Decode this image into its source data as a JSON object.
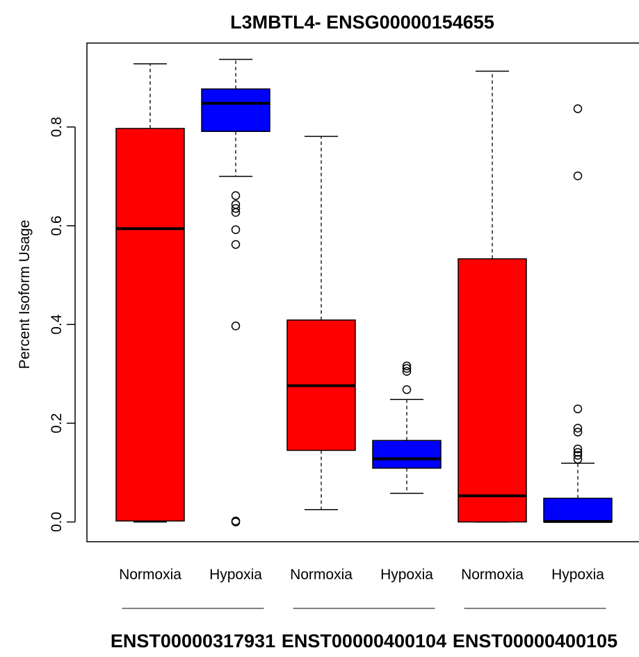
{
  "chart_data": {
    "type": "boxplot",
    "title": "L3MBTL4- ENSG00000154655",
    "ylabel": "Percent Isoform Usage",
    "xlabel": "",
    "ylim": [
      -0.04,
      0.97
    ],
    "yticks": [
      0.0,
      0.2,
      0.4,
      0.6,
      0.8
    ],
    "ytick_labels": [
      "0.0",
      "0.2",
      "0.4",
      "0.6",
      "0.8"
    ],
    "grid": false,
    "legend": "none",
    "colors": {
      "Normoxia": "#ff0000",
      "Hypoxia": "#0000ff"
    },
    "groups": [
      "ENST00000317931",
      "ENST00000400104",
      "ENST00000400105"
    ],
    "boxes": [
      {
        "group": "ENST00000317931",
        "condition": "Normoxia",
        "whisker_low": 0.0,
        "q1": 0.002,
        "median": 0.594,
        "q3": 0.797,
        "whisker_high": 0.928,
        "outliers": []
      },
      {
        "group": "ENST00000317931",
        "condition": "Hypoxia",
        "whisker_low": 0.7,
        "q1": 0.791,
        "median": 0.848,
        "q3": 0.877,
        "whisker_high": 0.937,
        "outliers": [
          0.661,
          0.643,
          0.635,
          0.627,
          0.592,
          0.562,
          0.397,
          0.002,
          0.0
        ]
      },
      {
        "group": "ENST00000400104",
        "condition": "Normoxia",
        "whisker_low": 0.025,
        "q1": 0.145,
        "median": 0.276,
        "q3": 0.409,
        "whisker_high": 0.781,
        "outliers": []
      },
      {
        "group": "ENST00000400104",
        "condition": "Hypoxia",
        "whisker_low": 0.058,
        "q1": 0.109,
        "median": 0.128,
        "q3": 0.165,
        "whisker_high": 0.248,
        "outliers": [
          0.316,
          0.311,
          0.305,
          0.268
        ]
      },
      {
        "group": "ENST00000400105",
        "condition": "Normoxia",
        "whisker_low": 0.0,
        "q1": 0.0,
        "median": 0.053,
        "q3": 0.533,
        "whisker_high": 0.913,
        "outliers": []
      },
      {
        "group": "ENST00000400105",
        "condition": "Hypoxia",
        "whisker_low": 0.0,
        "q1": 0.0,
        "median": 0.001,
        "q3": 0.048,
        "whisker_high": 0.119,
        "outliers": [
          0.837,
          0.701,
          0.229,
          0.19,
          0.182,
          0.148,
          0.141,
          0.135,
          0.127
        ]
      }
    ]
  }
}
